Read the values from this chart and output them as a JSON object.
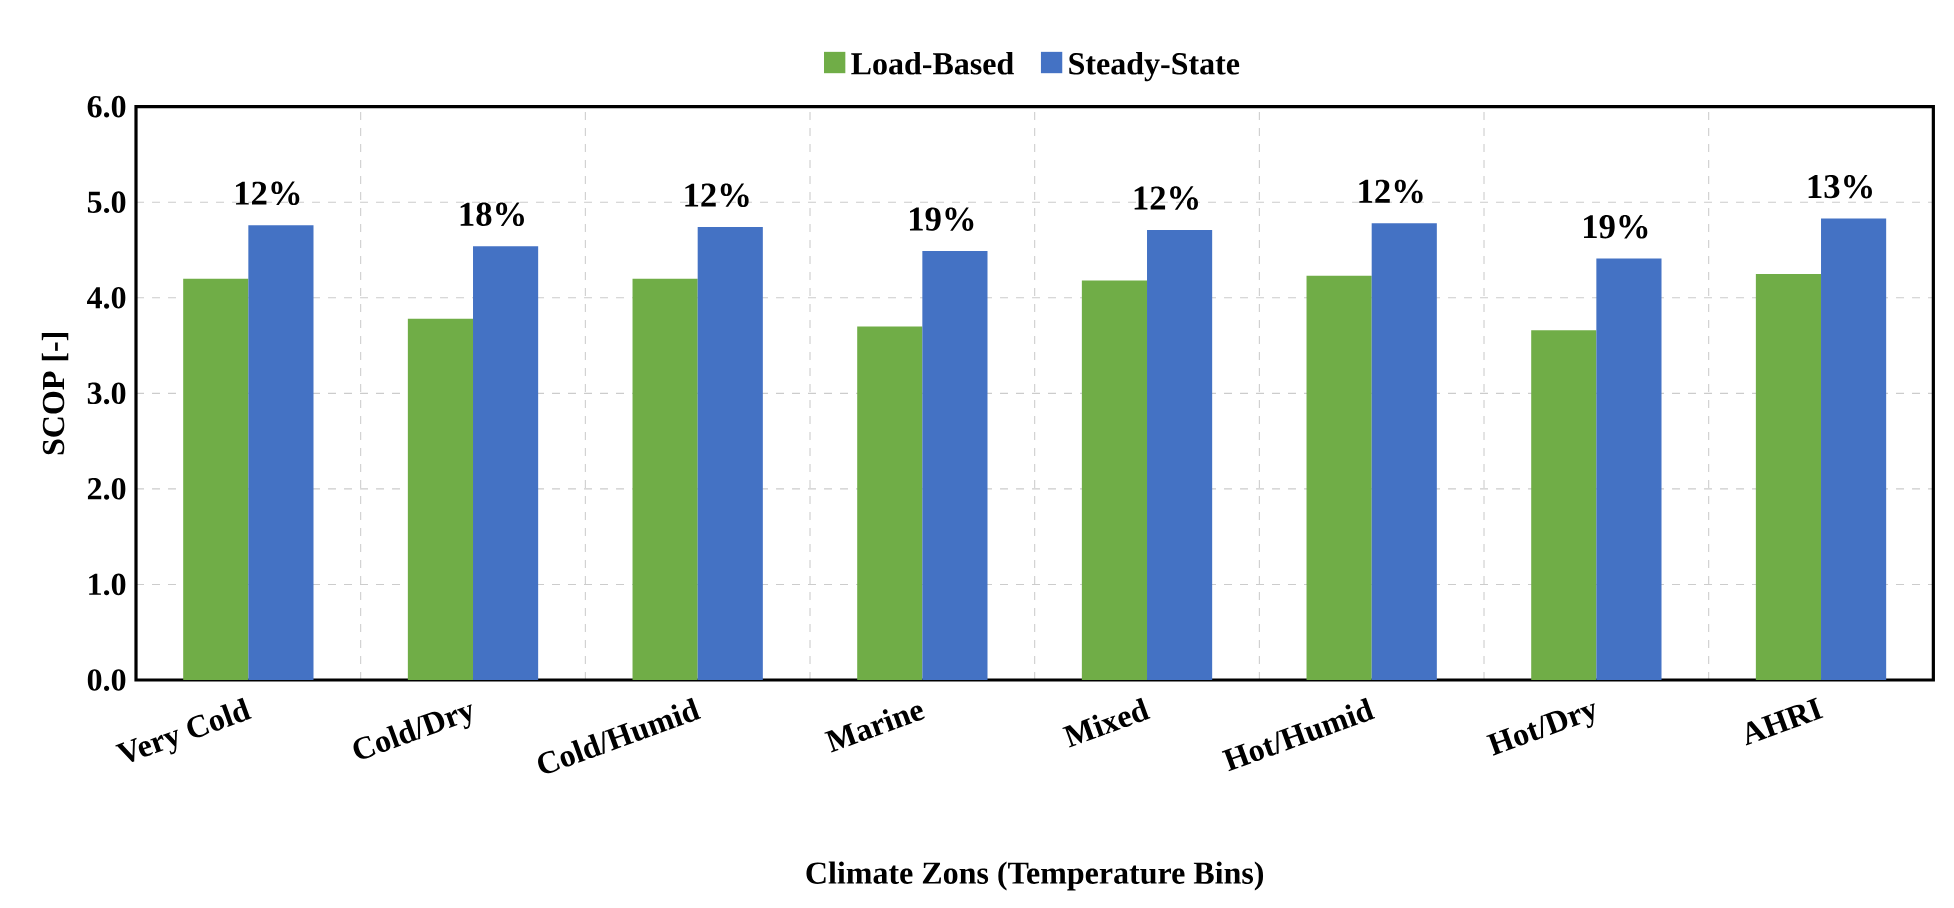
{
  "chart_data": {
    "type": "bar",
    "xlabel": "Climate Zons (Temperature Bins)",
    "ylabel": "SCOP [-]",
    "categories": [
      "Very Cold",
      "Cold/Dry",
      "Cold/Humid",
      "Marine",
      "Mixed",
      "Hot/Humid",
      "Hot/Dry",
      "AHRI"
    ],
    "series": [
      {
        "name": "Load-Based",
        "color": "#70ad47",
        "values": [
          4.2,
          3.78,
          4.2,
          3.7,
          4.18,
          4.23,
          3.66,
          4.25
        ]
      },
      {
        "name": "Steady-State",
        "color": "#4472c4",
        "values": [
          4.76,
          4.54,
          4.74,
          4.49,
          4.71,
          4.78,
          4.41,
          4.83
        ]
      }
    ],
    "ylim": [
      0,
      6
    ],
    "yticks": [
      {
        "value": 0,
        "label": "0.0"
      },
      {
        "value": 1,
        "label": "1.0"
      },
      {
        "value": 2,
        "label": "2.0"
      },
      {
        "value": 3,
        "label": "3.0"
      },
      {
        "value": 4,
        "label": "4.0"
      },
      {
        "value": 5,
        "label": "5.0"
      },
      {
        "value": 6,
        "label": "6.0"
      }
    ],
    "grid": true,
    "legend": "top",
    "annotations": [
      {
        "text": "12%",
        "x": "Very Cold",
        "y": 4.76
      },
      {
        "text": "18%",
        "x": "Cold/Dry",
        "y": 4.54
      },
      {
        "text": "12%",
        "x": "Cold/Humid",
        "y": 4.74
      },
      {
        "text": "19%",
        "x": "Marine",
        "y": 4.49
      },
      {
        "text": "12%",
        "x": "Mixed",
        "y": 4.71
      },
      {
        "text": "12%",
        "x": "Hot/Humid",
        "y": 4.78
      },
      {
        "text": "19%",
        "x": "Hot/Dry",
        "y": 4.41
      },
      {
        "text": "13%",
        "x": "AHRI",
        "y": 4.83
      }
    ]
  }
}
